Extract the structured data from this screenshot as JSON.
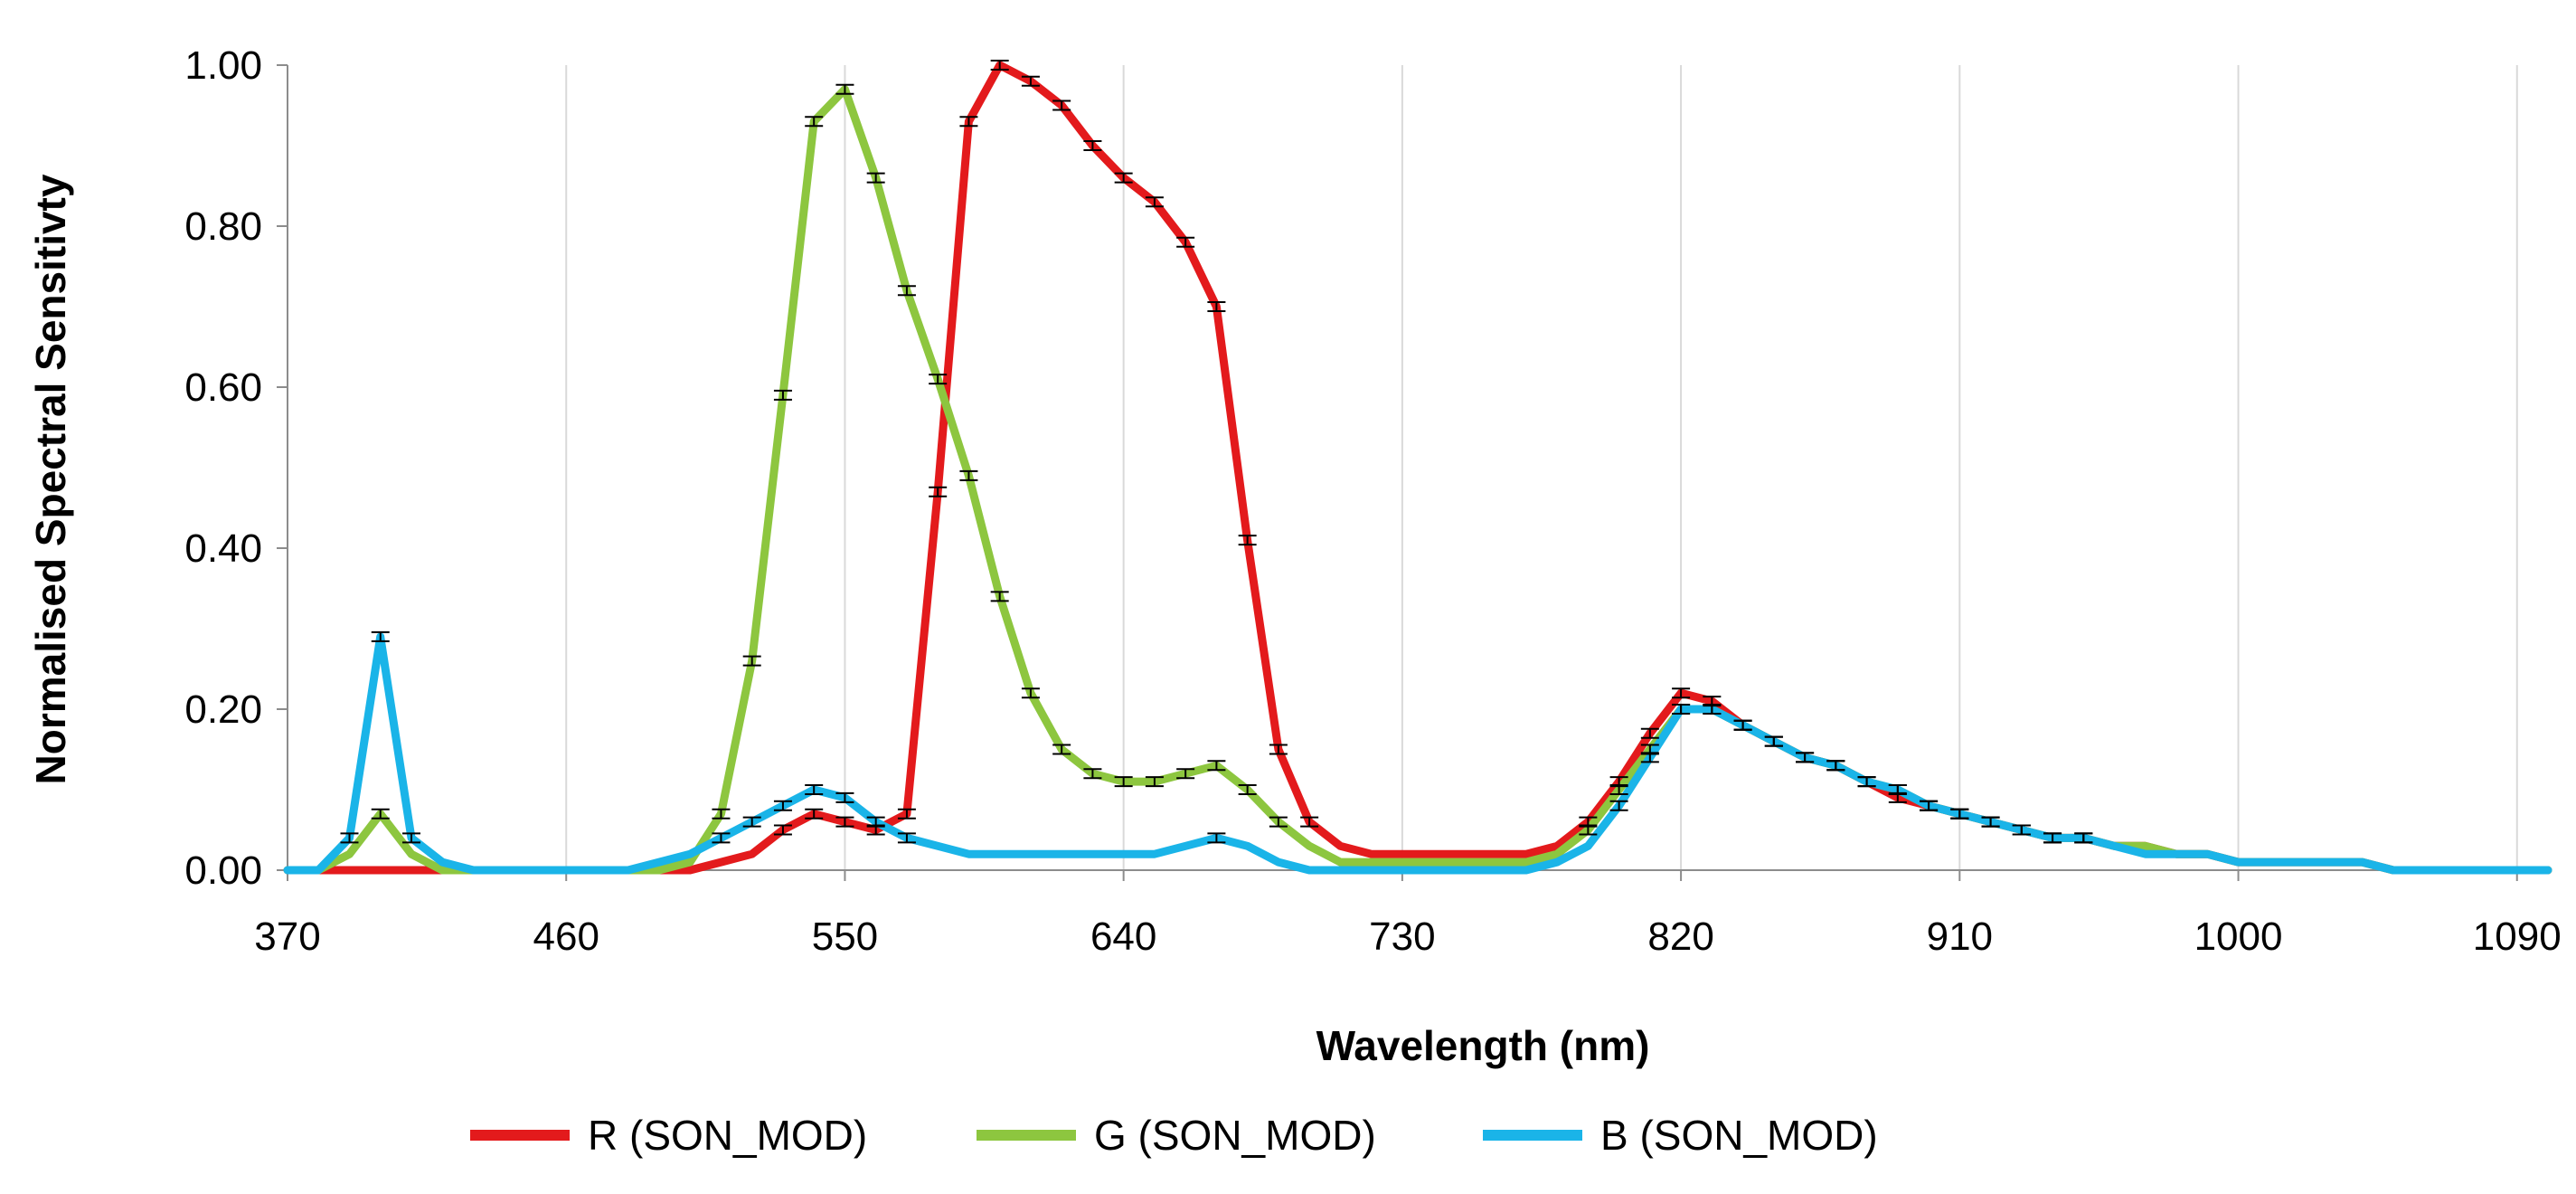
{
  "chart_data": {
    "type": "line",
    "title": "",
    "xlabel": "Wavelength (nm)",
    "ylabel": "Normalised Spectral Sensitivty",
    "xlim": [
      370,
      1100
    ],
    "ylim": [
      0,
      1
    ],
    "x_ticks": [
      370,
      460,
      550,
      640,
      730,
      820,
      910,
      1000,
      1090
    ],
    "y_ticks": [
      0,
      0.2,
      0.4,
      0.6,
      0.8,
      1.0
    ],
    "y_tick_labels": [
      "0.00",
      "0.20",
      "0.40",
      "0.60",
      "0.80",
      "1.00"
    ],
    "x_tick_labels": [
      "370",
      "460",
      "550",
      "640",
      "730",
      "820",
      "910",
      "1000",
      "1090"
    ],
    "grid": "vertical",
    "legend_position": "bottom",
    "series": [
      {
        "name": "R (SON_MOD)",
        "color": "#e31a1c",
        "x": [
          370,
          380,
          390,
          400,
          410,
          420,
          430,
          440,
          450,
          460,
          470,
          480,
          490,
          500,
          510,
          520,
          530,
          540,
          550,
          560,
          570,
          580,
          590,
          600,
          610,
          620,
          630,
          640,
          650,
          660,
          670,
          680,
          690,
          700,
          710,
          720,
          730,
          740,
          750,
          760,
          770,
          780,
          790,
          800,
          810,
          820,
          830,
          840,
          850,
          860,
          870,
          880,
          890,
          900,
          910,
          920,
          930,
          940,
          950,
          960,
          970,
          980,
          990,
          1000,
          1010,
          1020,
          1030,
          1040,
          1050,
          1060,
          1070,
          1080,
          1090,
          1100
        ],
        "values": [
          0,
          0,
          0,
          0,
          0,
          0,
          0,
          0,
          0,
          0,
          0,
          0,
          0,
          0,
          0.01,
          0.02,
          0.05,
          0.07,
          0.06,
          0.05,
          0.07,
          0.47,
          0.93,
          1.0,
          0.98,
          0.95,
          0.9,
          0.86,
          0.83,
          0.78,
          0.7,
          0.41,
          0.15,
          0.06,
          0.03,
          0.02,
          0.02,
          0.02,
          0.02,
          0.02,
          0.02,
          0.03,
          0.06,
          0.11,
          0.17,
          0.22,
          0.21,
          0.18,
          0.16,
          0.14,
          0.13,
          0.11,
          0.09,
          0.08,
          0.07,
          0.06,
          0.05,
          0.04,
          0.04,
          0.03,
          0.03,
          0.02,
          0.02,
          0.01,
          0.01,
          0.01,
          0.01,
          0.01,
          0,
          0,
          0,
          0,
          0,
          0
        ]
      },
      {
        "name": "G (SON_MOD)",
        "color": "#8dc63f",
        "x": [
          370,
          380,
          390,
          400,
          410,
          420,
          430,
          440,
          450,
          460,
          470,
          480,
          490,
          500,
          510,
          520,
          530,
          540,
          550,
          560,
          570,
          580,
          590,
          600,
          610,
          620,
          630,
          640,
          650,
          660,
          670,
          680,
          690,
          700,
          710,
          720,
          730,
          740,
          750,
          760,
          770,
          780,
          790,
          800,
          810,
          820,
          830,
          840,
          850,
          860,
          870,
          880,
          890,
          900,
          910,
          920,
          930,
          940,
          950,
          960,
          970,
          980,
          990,
          1000,
          1010,
          1020,
          1030,
          1040,
          1050,
          1060,
          1070,
          1080,
          1090,
          1100
        ],
        "values": [
          0,
          0,
          0.02,
          0.07,
          0.02,
          0,
          0,
          0,
          0,
          0,
          0,
          0,
          0,
          0.01,
          0.07,
          0.26,
          0.59,
          0.93,
          0.97,
          0.86,
          0.72,
          0.61,
          0.49,
          0.34,
          0.22,
          0.15,
          0.12,
          0.11,
          0.11,
          0.12,
          0.13,
          0.1,
          0.06,
          0.03,
          0.01,
          0.01,
          0.01,
          0.01,
          0.01,
          0.01,
          0.01,
          0.02,
          0.05,
          0.1,
          0.15,
          0.2,
          0.2,
          0.18,
          0.16,
          0.14,
          0.13,
          0.11,
          0.1,
          0.08,
          0.07,
          0.06,
          0.05,
          0.04,
          0.04,
          0.03,
          0.03,
          0.02,
          0.02,
          0.01,
          0.01,
          0.01,
          0.01,
          0.01,
          0,
          0,
          0,
          0,
          0,
          0
        ]
      },
      {
        "name": "B (SON_MOD)",
        "color": "#1ab4e8",
        "x": [
          370,
          380,
          390,
          400,
          410,
          420,
          430,
          440,
          450,
          460,
          470,
          480,
          490,
          500,
          510,
          520,
          530,
          540,
          550,
          560,
          570,
          580,
          590,
          600,
          610,
          620,
          630,
          640,
          650,
          660,
          670,
          680,
          690,
          700,
          710,
          720,
          730,
          740,
          750,
          760,
          770,
          780,
          790,
          800,
          810,
          820,
          830,
          840,
          850,
          860,
          870,
          880,
          890,
          900,
          910,
          920,
          930,
          940,
          950,
          960,
          970,
          980,
          990,
          1000,
          1010,
          1020,
          1030,
          1040,
          1050,
          1060,
          1070,
          1080,
          1090,
          1100
        ],
        "values": [
          0,
          0,
          0.04,
          0.29,
          0.04,
          0.01,
          0,
          0,
          0,
          0,
          0,
          0,
          0.01,
          0.02,
          0.04,
          0.06,
          0.08,
          0.1,
          0.09,
          0.06,
          0.04,
          0.03,
          0.02,
          0.02,
          0.02,
          0.02,
          0.02,
          0.02,
          0.02,
          0.03,
          0.04,
          0.03,
          0.01,
          0,
          0,
          0,
          0,
          0,
          0,
          0,
          0,
          0.01,
          0.03,
          0.08,
          0.14,
          0.2,
          0.2,
          0.18,
          0.16,
          0.14,
          0.13,
          0.11,
          0.1,
          0.08,
          0.07,
          0.06,
          0.05,
          0.04,
          0.04,
          0.03,
          0.02,
          0.02,
          0.02,
          0.01,
          0.01,
          0.01,
          0.01,
          0.01,
          0,
          0,
          0,
          0,
          0,
          0
        ]
      }
    ]
  }
}
